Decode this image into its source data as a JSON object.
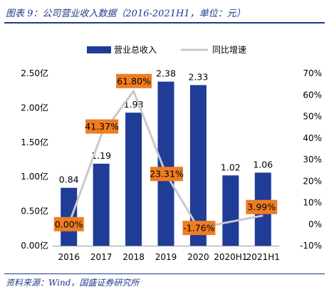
{
  "header": {
    "title": "图表 9：公司营业收入数据（2016-2021H1，单位：元）"
  },
  "footer": {
    "source": "资料来源：Wind，国盛证券研究所"
  },
  "chart_data": {
    "type": "bar",
    "categories": [
      "2016",
      "2017",
      "2018",
      "2019",
      "2020",
      "2020H1",
      "2021H1"
    ],
    "series": [
      {
        "name": "营业总收入",
        "type": "bar",
        "axis": "left",
        "color": "#1f3c97",
        "values": [
          0.84,
          1.19,
          1.93,
          2.38,
          2.33,
          1.02,
          1.06
        ],
        "labels": [
          "0.84",
          "1.19",
          "1.93",
          "2.38",
          "2.33",
          "1.02",
          "1.06"
        ]
      },
      {
        "name": "同比增速",
        "type": "line",
        "axis": "right",
        "color": "#c9c9c9",
        "values": [
          0.0,
          41.37,
          61.8,
          23.31,
          -1.76,
          null,
          3.99
        ],
        "labels": [
          "0.00%",
          "41.37%",
          "61.80%",
          "23.31%",
          "-1.76%",
          null,
          "3.99%"
        ],
        "label_box_color": "#ee7d22"
      }
    ],
    "left_axis": {
      "ylim": [
        0,
        2.5
      ],
      "ticks": [
        0,
        0.5,
        1.0,
        1.5,
        2.0,
        2.5
      ],
      "tick_labels": [
        "0.00亿",
        "0.50亿",
        "1.00亿",
        "1.50亿",
        "2.00亿",
        "2.50亿"
      ]
    },
    "right_axis": {
      "ylim": [
        -10,
        70
      ],
      "ticks": [
        -10,
        0,
        10,
        20,
        30,
        40,
        50,
        60,
        70
      ],
      "tick_labels": [
        "-10%",
        "0%",
        "10%",
        "20%",
        "30%",
        "40%",
        "50%",
        "60%",
        "70%"
      ]
    },
    "legend": {
      "position": "top"
    },
    "grid": false
  }
}
